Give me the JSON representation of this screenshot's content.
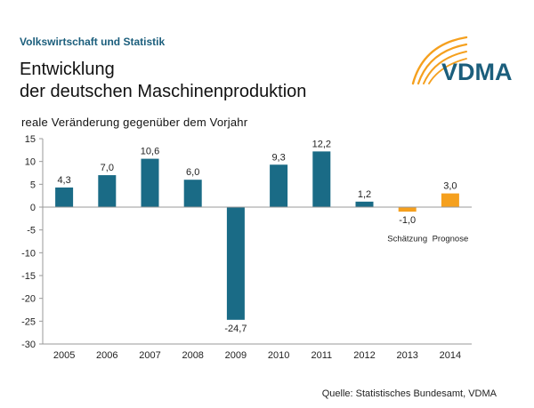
{
  "header": {
    "section": "Volkswirtschaft und Statistik",
    "title_line1": "Entwicklung",
    "title_line2": "der deutschen Maschinenproduktion",
    "logo_text": "VDMA"
  },
  "colors": {
    "actual": "#1a6b86",
    "forecast": "#f5a01e",
    "brand": "#1b5e7c"
  },
  "chart_data": {
    "type": "bar",
    "ylabel": "reale Veränderung gegenüber dem Vorjahr",
    "xlabel": "",
    "categories": [
      "2005",
      "2006",
      "2007",
      "2008",
      "2009",
      "2010",
      "2011",
      "2012",
      "2013",
      "2014"
    ],
    "values": [
      4.3,
      7.0,
      10.6,
      6.0,
      -24.7,
      9.3,
      12.2,
      1.2,
      -1.0,
      3.0
    ],
    "value_labels": [
      "4,3",
      "7,0",
      "10,6",
      "6,0",
      "-24,7",
      "9,3",
      "12,2",
      "1,2",
      "-1,0",
      "3,0"
    ],
    "bar_kind": [
      "actual",
      "actual",
      "actual",
      "actual",
      "actual",
      "actual",
      "actual",
      "actual",
      "forecast",
      "forecast"
    ],
    "annotations": [
      "",
      "",
      "",
      "",
      "",
      "",
      "",
      "",
      "Schätzung",
      "Prognose"
    ],
    "ylim": [
      -30,
      15
    ],
    "yticks": [
      15,
      10,
      5,
      0,
      -5,
      -10,
      -15,
      -20,
      -25,
      -30
    ],
    "grid": false,
    "legend": "none"
  },
  "footer": {
    "source": "Quelle: Statistisches Bundesamt, VDMA"
  }
}
